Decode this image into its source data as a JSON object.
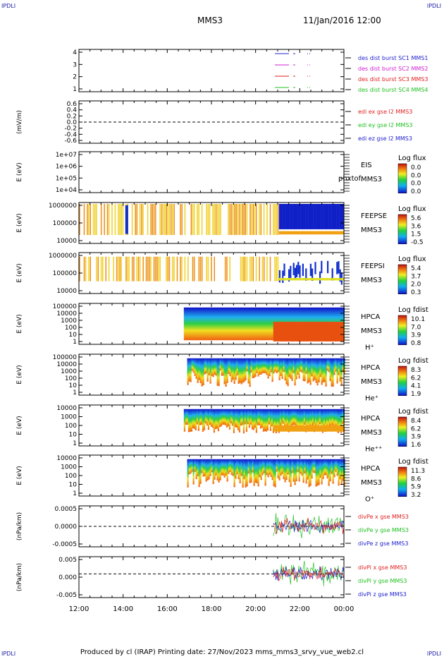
{
  "header": {
    "corner_label": "IPDLI",
    "title": "MMS3",
    "datetime": "11/Jan/2016 12:00"
  },
  "footer": {
    "text": "Produced by cl (IRAP)   Printing date: 27/Nov/2023   mms_mms3_srvy_vue_web2.cl"
  },
  "x_axis": {
    "tick_labels": [
      "12:00",
      "14:00",
      "16:00",
      "18:00",
      "20:00",
      "22:00",
      "00:00"
    ]
  },
  "chart_data": [
    {
      "type": "line",
      "panel": "des-dist-burst",
      "ylabel": "",
      "yticks": [
        "4",
        "3",
        "2",
        "1"
      ],
      "legend": [
        {
          "name": "des dist burst SC1 MMS1",
          "color": "#2020d0"
        },
        {
          "name": "des dist burst SC2 MMS2",
          "color": "#d020d0"
        },
        {
          "name": "des dist burst SC3 MMS3",
          "color": "#e02020"
        },
        {
          "name": "des dist burst SC4 MMS4",
          "color": "#20c020"
        }
      ]
    },
    {
      "type": "line",
      "panel": "edi-e-gse",
      "ylabel": "(mV/m)",
      "yticks": [
        "0.6",
        "0.4",
        "0.2",
        "0.0",
        "-0.2",
        "-0.4",
        "-0.6"
      ],
      "legend": [
        {
          "name": "edi ex gse l2 MMS3",
          "color": "#e02020"
        },
        {
          "name": "edi ey gse l2 MMS3",
          "color": "#20c020"
        },
        {
          "name": "edi ez gse l2 MMS3",
          "color": "#2020d0"
        }
      ]
    },
    {
      "type": "heatmap",
      "panel": "eis",
      "ylabel": "E (eV)",
      "yticks": [
        "1e+07",
        "1e+06",
        "1e+05",
        "1e+04"
      ],
      "labels": [
        "EIS",
        "MMS3"
      ],
      "overlay_text": "phxtof",
      "colorbar_title": "Log flux",
      "colorbar_ticks": [
        "0.0",
        "0.0",
        "0.0",
        "0.0"
      ]
    },
    {
      "type": "heatmap",
      "panel": "feepse",
      "ylabel": "E (eV)",
      "yticks": [
        "1000000",
        "100000",
        "10000"
      ],
      "labels": [
        "FEEPSE",
        "MMS3"
      ],
      "colorbar_title": "Log flux",
      "colorbar_ticks": [
        "5.6",
        "3.6",
        "1.5",
        "-0.5"
      ]
    },
    {
      "type": "heatmap",
      "panel": "feepsi",
      "ylabel": "E (eV)",
      "yticks": [
        "1000000",
        "100000",
        "10000"
      ],
      "labels": [
        "FEEPSI",
        "MMS3"
      ],
      "colorbar_title": "Log flux",
      "colorbar_ticks": [
        "5.4",
        "3.7",
        "2.0",
        "0.3"
      ]
    },
    {
      "type": "heatmap",
      "panel": "hpca-h",
      "ylabel": "E (eV)",
      "yticks": [
        "100000",
        "10000",
        "1000",
        "100",
        "10",
        "1"
      ],
      "labels": [
        "HPCA",
        "MMS3",
        "H⁺"
      ],
      "colorbar_title": "Log fdist",
      "colorbar_ticks": [
        "10.1",
        "7.0",
        "3.9",
        "0.8"
      ]
    },
    {
      "type": "heatmap",
      "panel": "hpca-he",
      "ylabel": "E (eV)",
      "yticks": [
        "100000",
        "10000",
        "1000",
        "100",
        "10",
        "1"
      ],
      "labels": [
        "HPCA",
        "MMS3",
        "He⁺"
      ],
      "colorbar_title": "Log fdist",
      "colorbar_ticks": [
        "8.3",
        "6.2",
        "4.1",
        "1.9"
      ]
    },
    {
      "type": "heatmap",
      "panel": "hpca-hepp",
      "ylabel": "E (eV)",
      "yticks": [
        "10000",
        "1000",
        "100",
        "10",
        "1"
      ],
      "labels": [
        "HPCA",
        "MMS3",
        "He⁺⁺"
      ],
      "colorbar_title": "Log fdist",
      "colorbar_ticks": [
        "8.4",
        "6.2",
        "3.9",
        "1.6"
      ]
    },
    {
      "type": "heatmap",
      "panel": "hpca-o",
      "ylabel": "E (eV)",
      "yticks": [
        "10000",
        "1000",
        "100",
        "10",
        "1"
      ],
      "labels": [
        "HPCA",
        "MMS3",
        "O⁺"
      ],
      "colorbar_title": "Log fdist",
      "colorbar_ticks": [
        "11.3",
        "8.6",
        "5.9",
        "3.2"
      ]
    },
    {
      "type": "line",
      "panel": "divpe",
      "ylabel": "(nPa/km)",
      "yticks": [
        "0.0005",
        "0.0000",
        "-0.0005"
      ],
      "legend": [
        {
          "name": "divPe x gse MMS3",
          "color": "#e02020"
        },
        {
          "name": "divPe y gse MMS3",
          "color": "#20c020"
        },
        {
          "name": "divPe z gse MMS3",
          "color": "#2020d0"
        }
      ]
    },
    {
      "type": "line",
      "panel": "divpi",
      "ylabel": "(nPa/km)",
      "yticks": [
        "0.005",
        "0.000",
        "-0.005"
      ],
      "legend": [
        {
          "name": "divPi x gse MMS3",
          "color": "#e02020"
        },
        {
          "name": "divPi y gse MMS3",
          "color": "#20c020"
        },
        {
          "name": "divPi z gse MMS3",
          "color": "#2020d0"
        }
      ]
    }
  ]
}
